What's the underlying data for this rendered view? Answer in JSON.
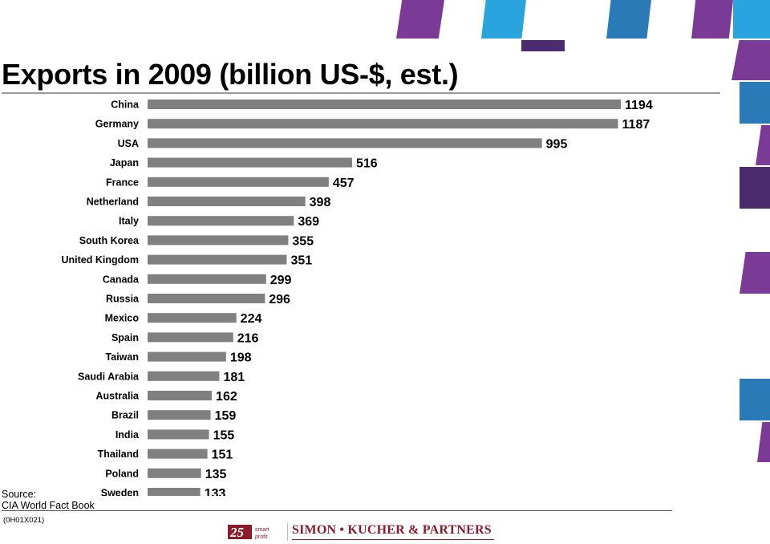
{
  "slide": {
    "title": "Exports in 2009 (billion US-$, est.)",
    "source_label": "Source:",
    "source_text": "CIA World Fact Book",
    "ref_code": "(0H01X021)"
  },
  "logo": {
    "number": "25",
    "tagline_1": "smart",
    "tagline_2": "profit",
    "company": "SIMON • KUCHER & PARTNERS",
    "brand_color": "#8b1c2c"
  },
  "colors": {
    "bar": "#808080",
    "purple": "#7b3a96",
    "blue": "#2a7ab8",
    "dark_purple": "#4b2a6e"
  },
  "chart_data": {
    "type": "bar",
    "orientation": "horizontal",
    "title": "Exports in 2009 (billion US-$, est.)",
    "xlabel": "",
    "ylabel": "",
    "grid": false,
    "categories": [
      "China",
      "Germany",
      "USA",
      "Japan",
      "France",
      "Netherland",
      "Italy",
      "South Korea",
      "United Kingdom",
      "Canada",
      "Russia",
      "Mexico",
      "Spain",
      "Taiwan",
      "Saudi Arabia",
      "Australia",
      "Brazil",
      "India",
      "Thailand",
      "Poland",
      "Sweden"
    ],
    "values": [
      1194,
      1187,
      995,
      516,
      457,
      398,
      369,
      355,
      351,
      299,
      296,
      224,
      216,
      198,
      181,
      162,
      159,
      155,
      151,
      135,
      133
    ],
    "value_labels": [
      "1194",
      "1187",
      "995",
      "516",
      "457",
      "398",
      "369",
      "355",
      "351",
      "299",
      "296",
      "224",
      "216",
      "198",
      "181",
      "162",
      "159",
      "155",
      "151",
      "135",
      "133"
    ]
  }
}
